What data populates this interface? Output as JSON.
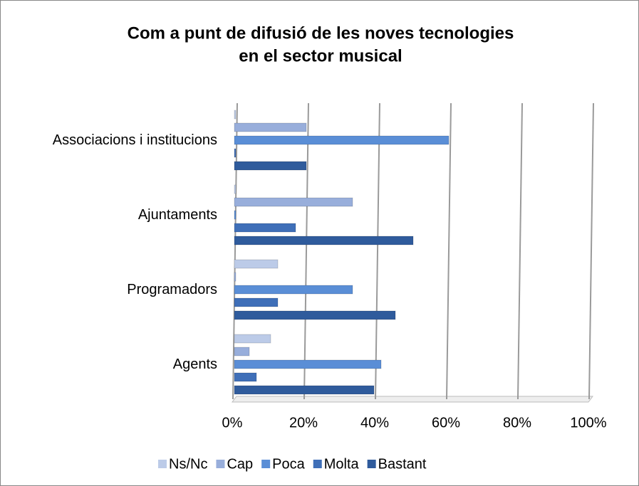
{
  "chart_data": {
    "type": "bar",
    "orientation": "horizontal",
    "title": [
      "Com a punt de difusió de les noves tecnologies",
      "en el sector musical"
    ],
    "categories": [
      "Agents",
      "Programadors",
      "Ajuntaments",
      "Associacions i institucions"
    ],
    "series": [
      {
        "name": "Ns/Nc",
        "color": "#bccbe8",
        "values": [
          10,
          12,
          0,
          0
        ]
      },
      {
        "name": "Cap",
        "color": "#98aedb",
        "values": [
          4,
          0,
          33,
          20
        ]
      },
      {
        "name": "Poca",
        "color": "#5a8ed6",
        "values": [
          41,
          33,
          0,
          60
        ]
      },
      {
        "name": "Molta",
        "color": "#3f6fb8",
        "values": [
          6,
          12,
          17,
          0
        ]
      },
      {
        "name": "Bastant",
        "color": "#2f5b9c",
        "values": [
          39,
          45,
          50,
          20
        ]
      }
    ],
    "xlim": [
      0,
      100
    ],
    "xticks": [
      {
        "value": 0,
        "label": "0%"
      },
      {
        "value": 20,
        "label": "20%"
      },
      {
        "value": 40,
        "label": "40%"
      },
      {
        "value": 60,
        "label": "60%"
      },
      {
        "value": 80,
        "label": "80%"
      },
      {
        "value": 100,
        "label": "100%"
      }
    ],
    "grid": true,
    "legend": "bottom"
  }
}
